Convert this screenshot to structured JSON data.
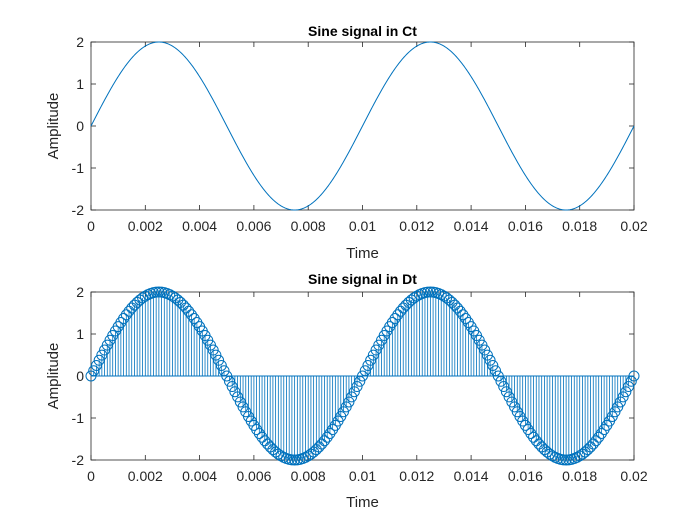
{
  "chart_data": [
    {
      "type": "line",
      "title": "Sine signal in Ct",
      "xlabel": "Time",
      "ylabel": "Amplitude",
      "xlim": [
        0,
        0.02
      ],
      "ylim": [
        -2,
        2
      ],
      "x_ticks": [
        "0",
        "0.002",
        "0.004",
        "0.006",
        "0.008",
        "0.01",
        "0.012",
        "0.014",
        "0.016",
        "0.018",
        "0.02"
      ],
      "y_ticks": [
        "-2",
        "-1",
        "0",
        "1",
        "2"
      ],
      "signal": {
        "amplitude": 2,
        "frequency_hz": 100,
        "t_start": 0,
        "t_end": 0.02
      },
      "grid": false,
      "color": "#0072BD"
    },
    {
      "type": "stem",
      "title": "Sine signal in Dt",
      "xlabel": "Time",
      "ylabel": "Amplitude",
      "xlim": [
        0,
        0.02
      ],
      "ylim": [
        -2,
        2
      ],
      "x_ticks": [
        "0",
        "0.002",
        "0.004",
        "0.006",
        "0.008",
        "0.01",
        "0.012",
        "0.014",
        "0.016",
        "0.018",
        "0.02"
      ],
      "y_ticks": [
        "-2",
        "-1",
        "0",
        "1",
        "2"
      ],
      "signal": {
        "amplitude": 2,
        "frequency_hz": 100,
        "t_start": 0,
        "t_end": 0.02,
        "sample_step": 0.0001
      },
      "marker": "circle",
      "grid": false,
      "color": "#0072BD"
    }
  ]
}
